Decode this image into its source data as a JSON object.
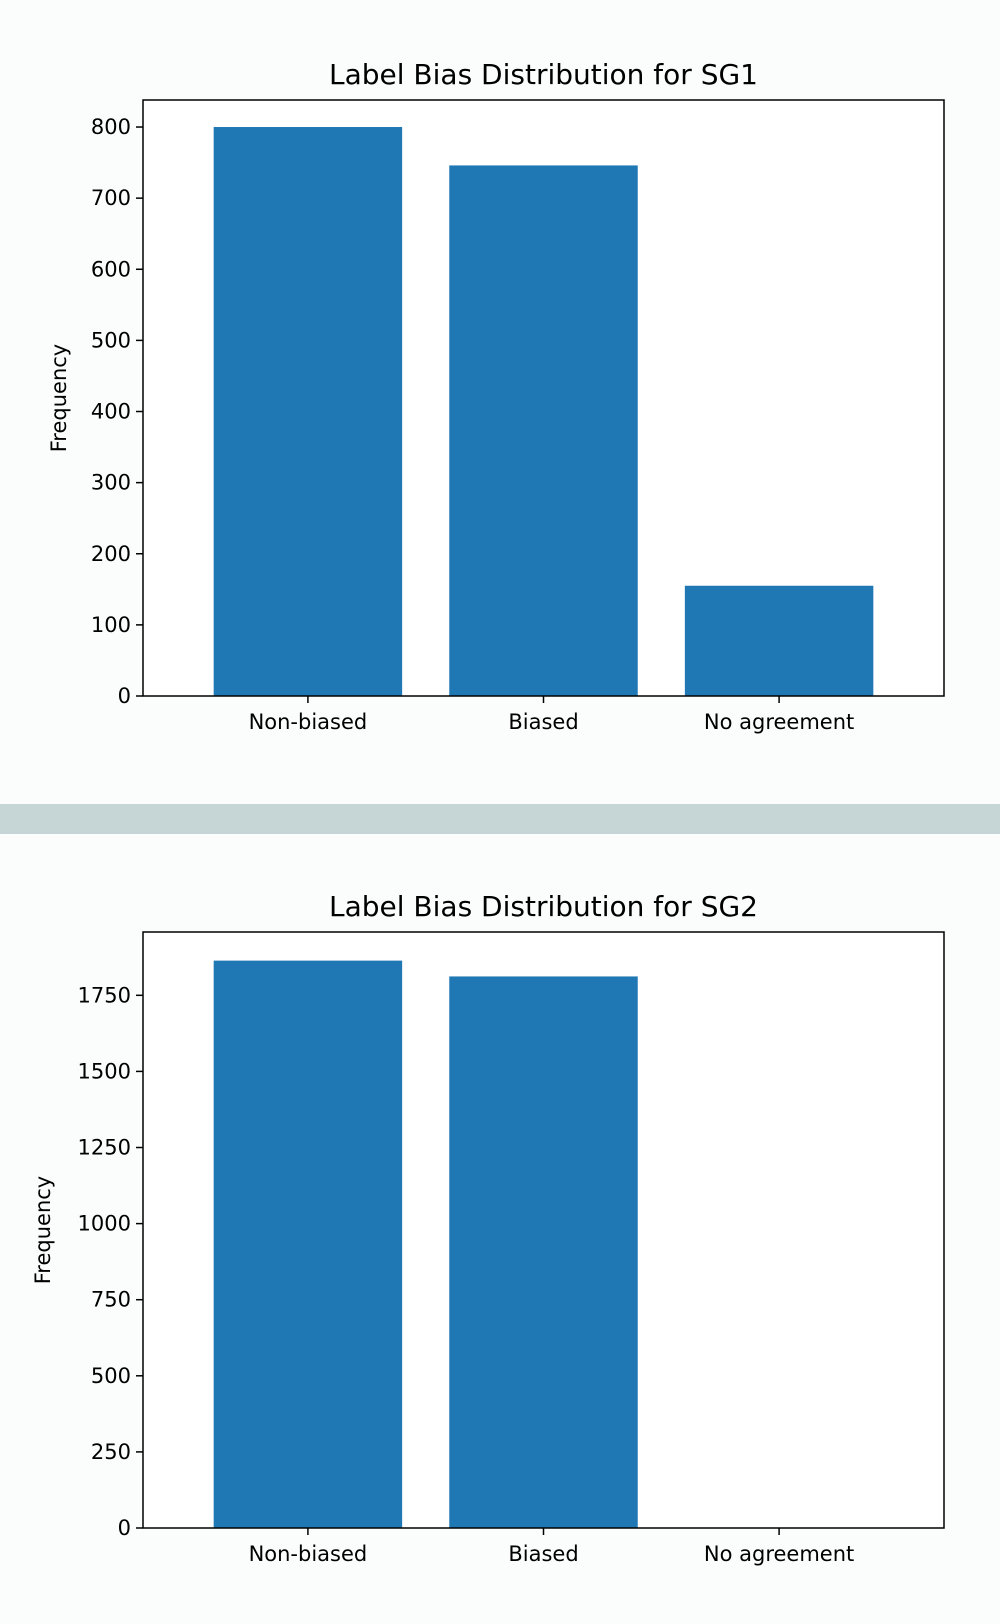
{
  "chart_data": [
    {
      "type": "bar",
      "title": "Label Bias Distribution for SG1",
      "xlabel": "",
      "ylabel": "Frequency",
      "categories": [
        "Non-biased",
        "Biased",
        "No agreement"
      ],
      "values": [
        800,
        746,
        155
      ],
      "ylim": [
        0,
        838
      ],
      "yticks": [
        0,
        100,
        200,
        300,
        400,
        500,
        600,
        700,
        800
      ],
      "bar_color": "#1f77b4",
      "grid": false,
      "legend": "none"
    },
    {
      "type": "bar",
      "title": "Label Bias Distribution for SG2",
      "xlabel": "",
      "ylabel": "Frequency",
      "categories": [
        "Non-biased",
        "Biased",
        "No agreement"
      ],
      "values": [
        1864,
        1812,
        0
      ],
      "ylim": [
        0,
        1958
      ],
      "yticks": [
        0,
        250,
        500,
        750,
        1000,
        1250,
        1500,
        1750
      ],
      "bar_color": "#1f77b4",
      "grid": false,
      "legend": "none"
    }
  ]
}
